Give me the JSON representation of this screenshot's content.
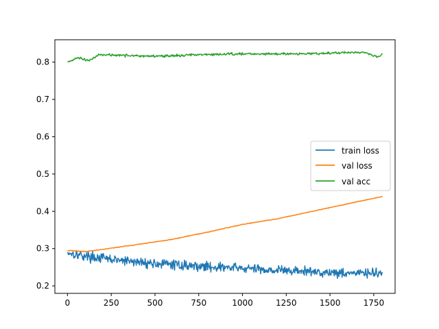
{
  "chart_data": {
    "type": "line",
    "title": "",
    "xlabel": "",
    "ylabel": "",
    "xlim": [
      -72,
      1872
    ],
    "ylim": [
      0.18,
      0.86
    ],
    "x_ticks": [
      0,
      250,
      500,
      750,
      1000,
      1250,
      1500,
      1750
    ],
    "x_tick_labels": [
      "0",
      "250",
      "500",
      "750",
      "1000",
      "1250",
      "1500",
      "1750"
    ],
    "y_ticks": [
      0.2,
      0.3,
      0.4,
      0.5,
      0.6,
      0.7,
      0.8
    ],
    "y_tick_labels": [
      "0.2",
      "0.3",
      "0.4",
      "0.5",
      "0.6",
      "0.7",
      "0.8"
    ],
    "grid": false,
    "legend_position": "center-right",
    "x_range": [
      0,
      1800
    ],
    "series": [
      {
        "name": "train loss",
        "color": "#1f77b4",
        "noise": 0.012,
        "keypoints": [
          [
            0,
            0.29
          ],
          [
            100,
            0.28
          ],
          [
            300,
            0.268
          ],
          [
            500,
            0.26
          ],
          [
            750,
            0.253
          ],
          [
            1000,
            0.247
          ],
          [
            1250,
            0.241
          ],
          [
            1500,
            0.236
          ],
          [
            1800,
            0.233
          ]
        ]
      },
      {
        "name": "val loss",
        "color": "#ff7f0e",
        "noise": 0.0008,
        "keypoints": [
          [
            0,
            0.295
          ],
          [
            100,
            0.292
          ],
          [
            200,
            0.298
          ],
          [
            400,
            0.311
          ],
          [
            600,
            0.325
          ],
          [
            800,
            0.344
          ],
          [
            1000,
            0.365
          ],
          [
            1200,
            0.38
          ],
          [
            1400,
            0.4
          ],
          [
            1600,
            0.42
          ],
          [
            1800,
            0.44
          ]
        ]
      },
      {
        "name": "val acc",
        "color": "#2ca02c",
        "noise": 0.003,
        "keypoints": [
          [
            0,
            0.8
          ],
          [
            60,
            0.812
          ],
          [
            120,
            0.804
          ],
          [
            180,
            0.82
          ],
          [
            300,
            0.818
          ],
          [
            500,
            0.816
          ],
          [
            750,
            0.82
          ],
          [
            1000,
            0.822
          ],
          [
            1250,
            0.822
          ],
          [
            1500,
            0.824
          ],
          [
            1700,
            0.826
          ],
          [
            1780,
            0.814
          ],
          [
            1800,
            0.822
          ]
        ]
      }
    ]
  }
}
